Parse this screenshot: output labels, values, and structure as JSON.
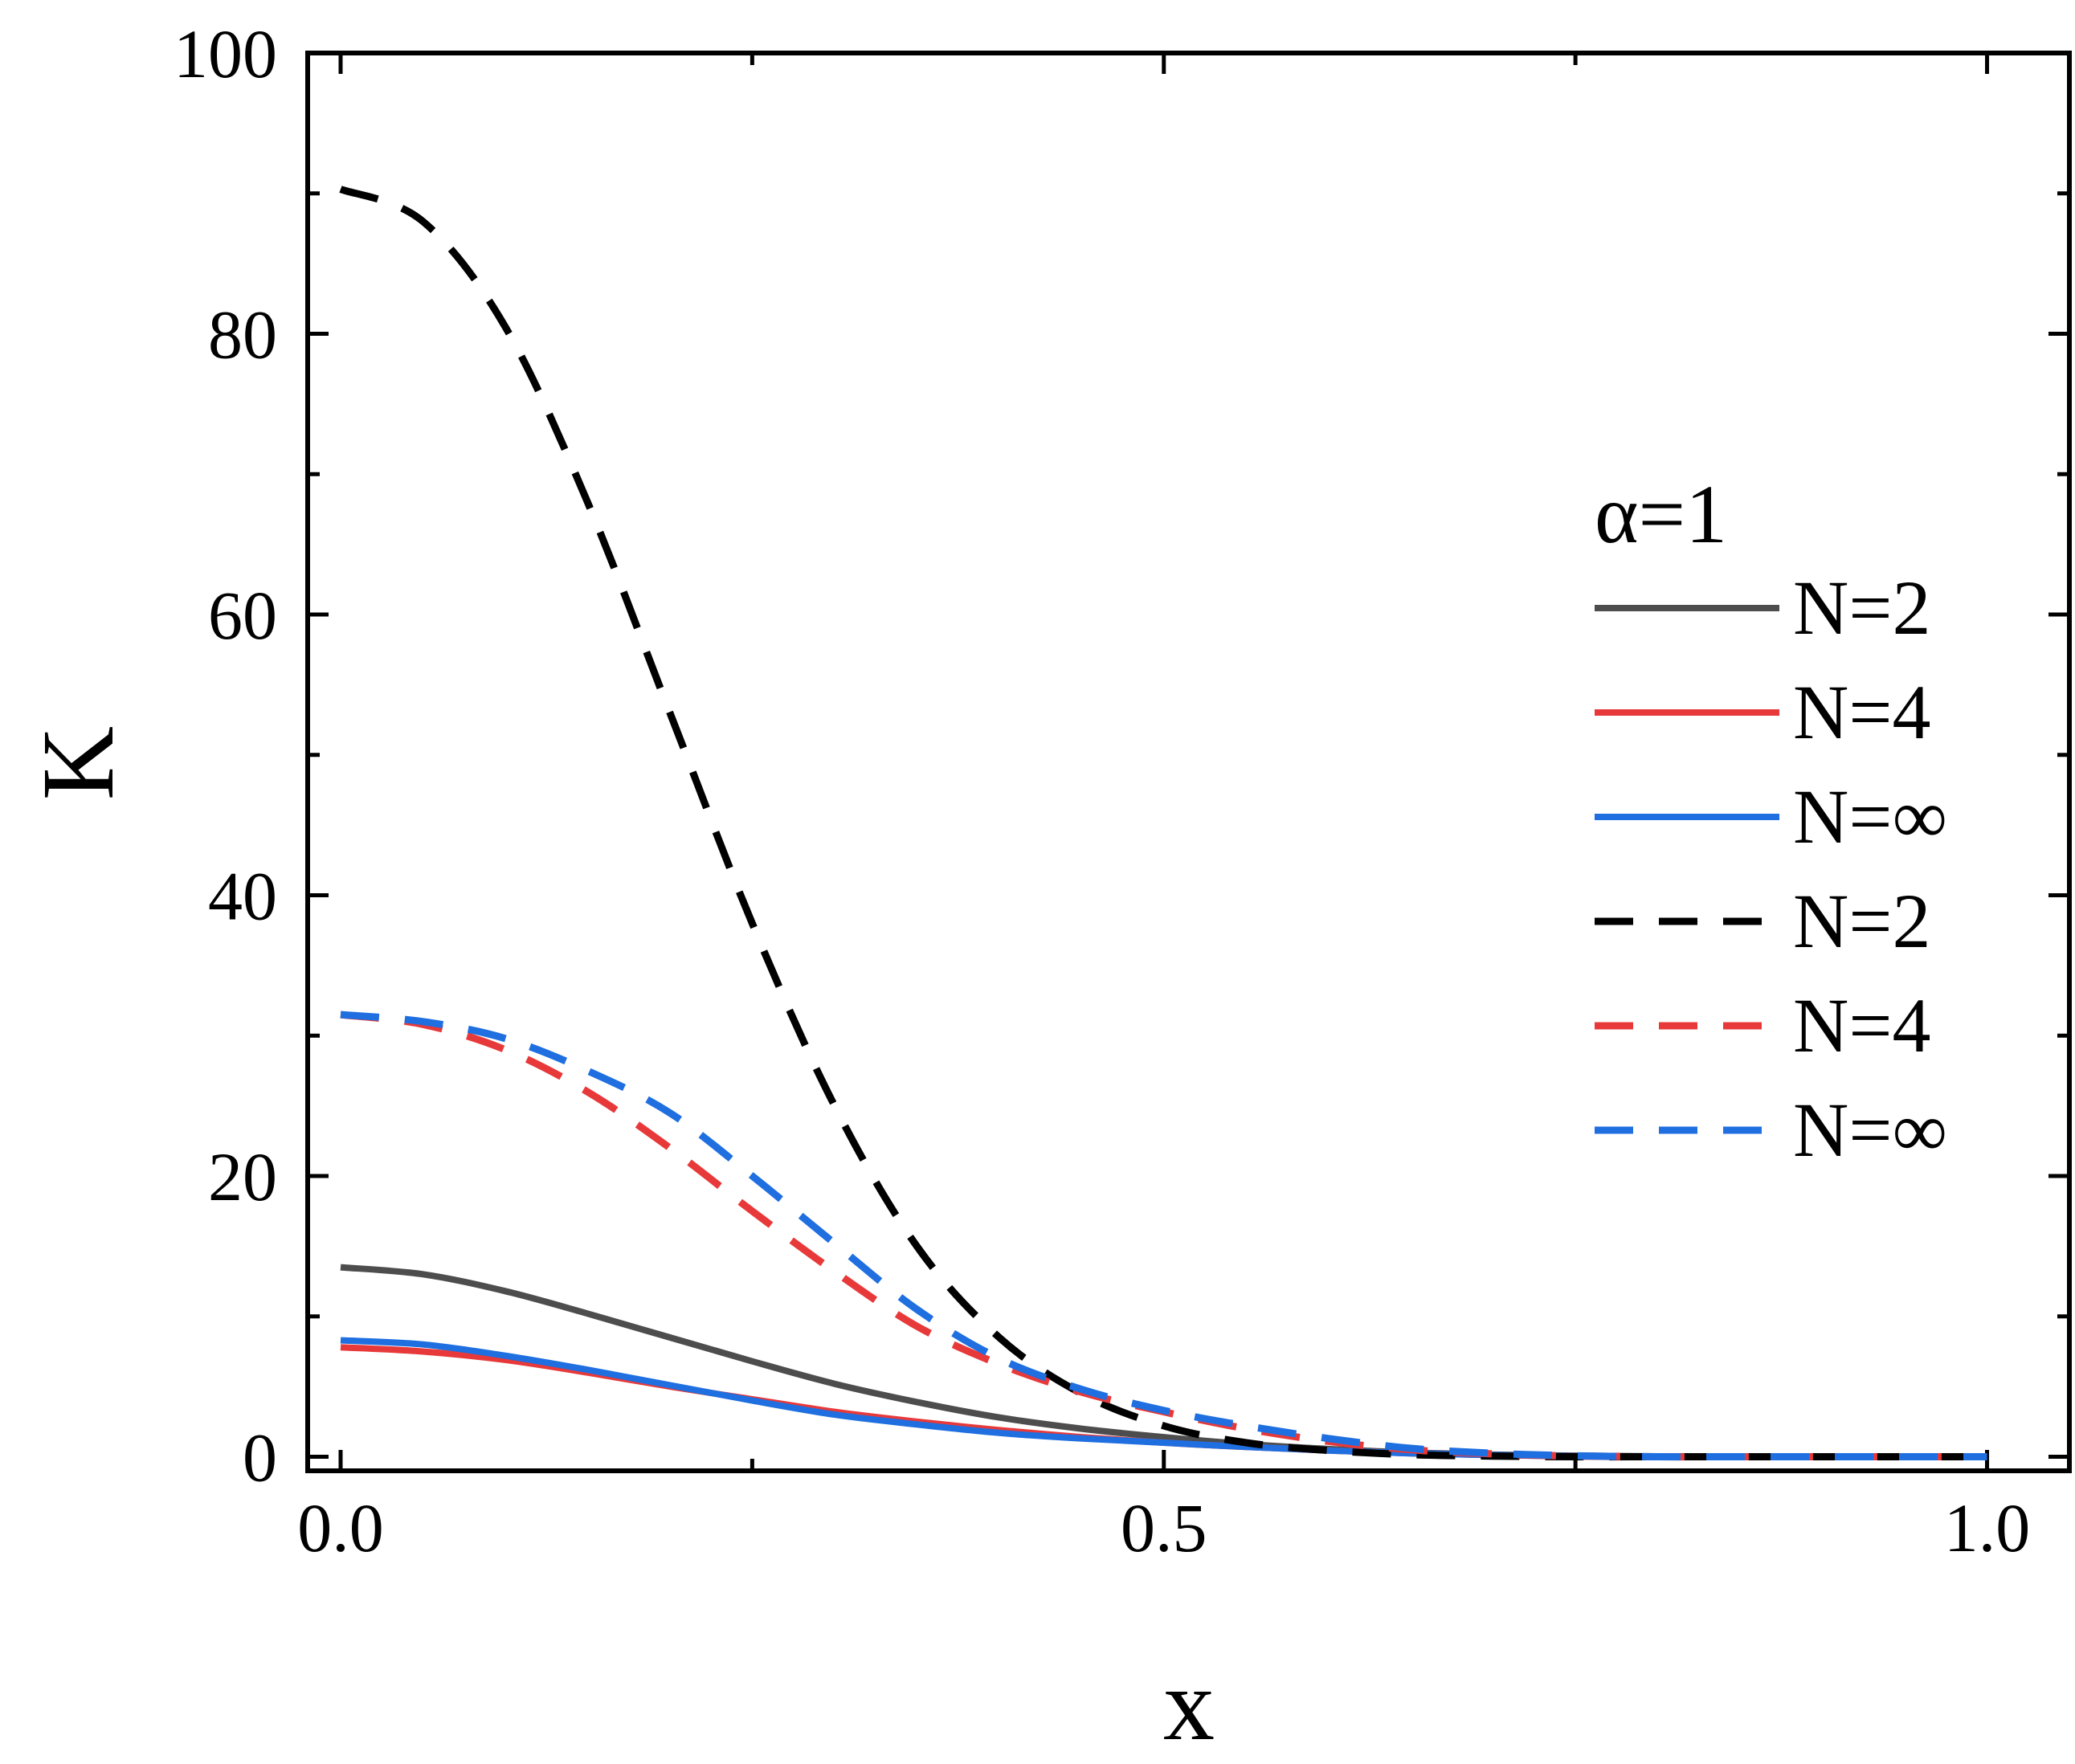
{
  "chart_data": {
    "type": "line",
    "xlabel": "x",
    "ylabel": "K",
    "xlim": [
      -0.02,
      1.05
    ],
    "ylim": [
      -1,
      100
    ],
    "x_ticks": [
      0.0,
      0.25,
      0.5,
      0.75,
      1.0
    ],
    "x_tick_labels": [
      "0.0",
      "",
      "0.5",
      "",
      "1.0"
    ],
    "y_ticks": [
      0,
      10,
      20,
      30,
      40,
      50,
      60,
      70,
      80,
      90,
      100
    ],
    "y_tick_labels": [
      "0",
      "",
      "20",
      "",
      "40",
      "",
      "60",
      "",
      "80",
      "",
      "100"
    ],
    "grid": false,
    "legend_placement": "right",
    "legend_title": "α=1",
    "x": [
      0.0,
      0.05,
      0.1,
      0.15,
      0.2,
      0.25,
      0.3,
      0.35,
      0.4,
      0.45,
      0.5,
      0.55,
      0.6,
      0.65,
      0.7,
      0.75,
      0.8,
      0.85,
      0.9,
      0.95,
      1.0
    ],
    "series": [
      {
        "name": "N=2",
        "style": "solid",
        "color": "#4d4d4d",
        "values": [
          13.5,
          13.0,
          11.8,
          10.2,
          8.5,
          6.8,
          5.2,
          3.9,
          2.8,
          2.0,
          1.4,
          0.9,
          0.55,
          0.3,
          0.15,
          0.08,
          0.03,
          0.01,
          0.0,
          0.0,
          0.0
        ]
      },
      {
        "name": "N=4",
        "style": "solid",
        "color": "#e8393a",
        "values": [
          7.8,
          7.5,
          6.9,
          6.0,
          5.0,
          4.1,
          3.2,
          2.5,
          1.9,
          1.4,
          1.0,
          0.7,
          0.45,
          0.25,
          0.12,
          0.05,
          0.02,
          0.01,
          0.0,
          0.0,
          0.0
        ]
      },
      {
        "name": "N=∞",
        "style": "solid",
        "color": "#1f6fe0",
        "values": [
          8.3,
          8.0,
          7.2,
          6.2,
          5.1,
          4.0,
          3.0,
          2.3,
          1.7,
          1.3,
          1.0,
          0.7,
          0.45,
          0.25,
          0.12,
          0.05,
          0.02,
          0.01,
          0.0,
          0.0,
          0.0
        ]
      },
      {
        "name": "N=2",
        "style": "dashed",
        "color": "#000000",
        "values": [
          90.3,
          88.0,
          80.5,
          68.0,
          53.0,
          38.0,
          25.0,
          15.0,
          8.5,
          4.5,
          2.2,
          1.0,
          0.45,
          0.15,
          0.05,
          0.0,
          0.0,
          0.0,
          0.0,
          0.0,
          0.0
        ]
      },
      {
        "name": "N=4",
        "style": "dashed",
        "color": "#e8393a",
        "values": [
          31.5,
          30.8,
          29.0,
          26.0,
          22.0,
          17.5,
          13.2,
          9.3,
          6.6,
          4.6,
          3.2,
          2.0,
          1.1,
          0.5,
          0.2,
          0.05,
          0.0,
          0.0,
          0.0,
          0.0,
          0.0
        ]
      },
      {
        "name": "N=∞",
        "style": "dashed",
        "color": "#1f6fe0",
        "values": [
          31.5,
          31.0,
          29.8,
          27.5,
          24.5,
          20.0,
          15.2,
          10.5,
          7.0,
          4.8,
          3.3,
          2.2,
          1.3,
          0.6,
          0.25,
          0.07,
          0.0,
          0.0,
          0.0,
          0.0,
          0.0
        ]
      }
    ]
  }
}
